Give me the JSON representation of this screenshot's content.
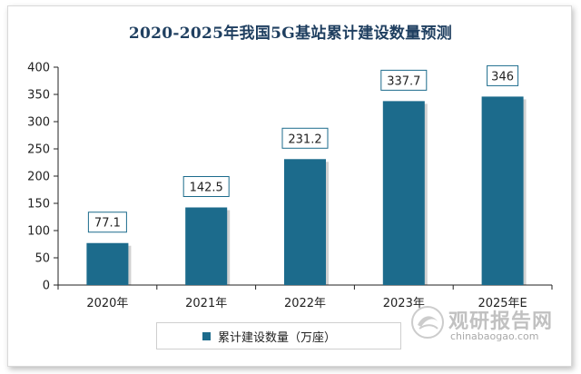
{
  "chart_data": {
    "type": "bar",
    "title": "2020-2025年我国5G基站累计建设数量预测",
    "categories": [
      "2020年",
      "2021年",
      "2022年",
      "2023年",
      "2025年E"
    ],
    "series": [
      {
        "name": "累计建设数量（万座）",
        "values": [
          77.1,
          142.5,
          231.2,
          337.7,
          346
        ]
      }
    ],
    "data_labels": [
      "77.1",
      "142.5",
      "231.2",
      "337.7",
      "346"
    ],
    "ylim": [
      0,
      400
    ],
    "yticks": [
      0,
      50,
      100,
      150,
      200,
      250,
      300,
      350,
      400
    ],
    "grid": false,
    "legend_position": "bottom",
    "bar_color": "#1c6b8c"
  },
  "watermark": {
    "cn": "观研报告网",
    "en": "chinabaogao.com"
  }
}
